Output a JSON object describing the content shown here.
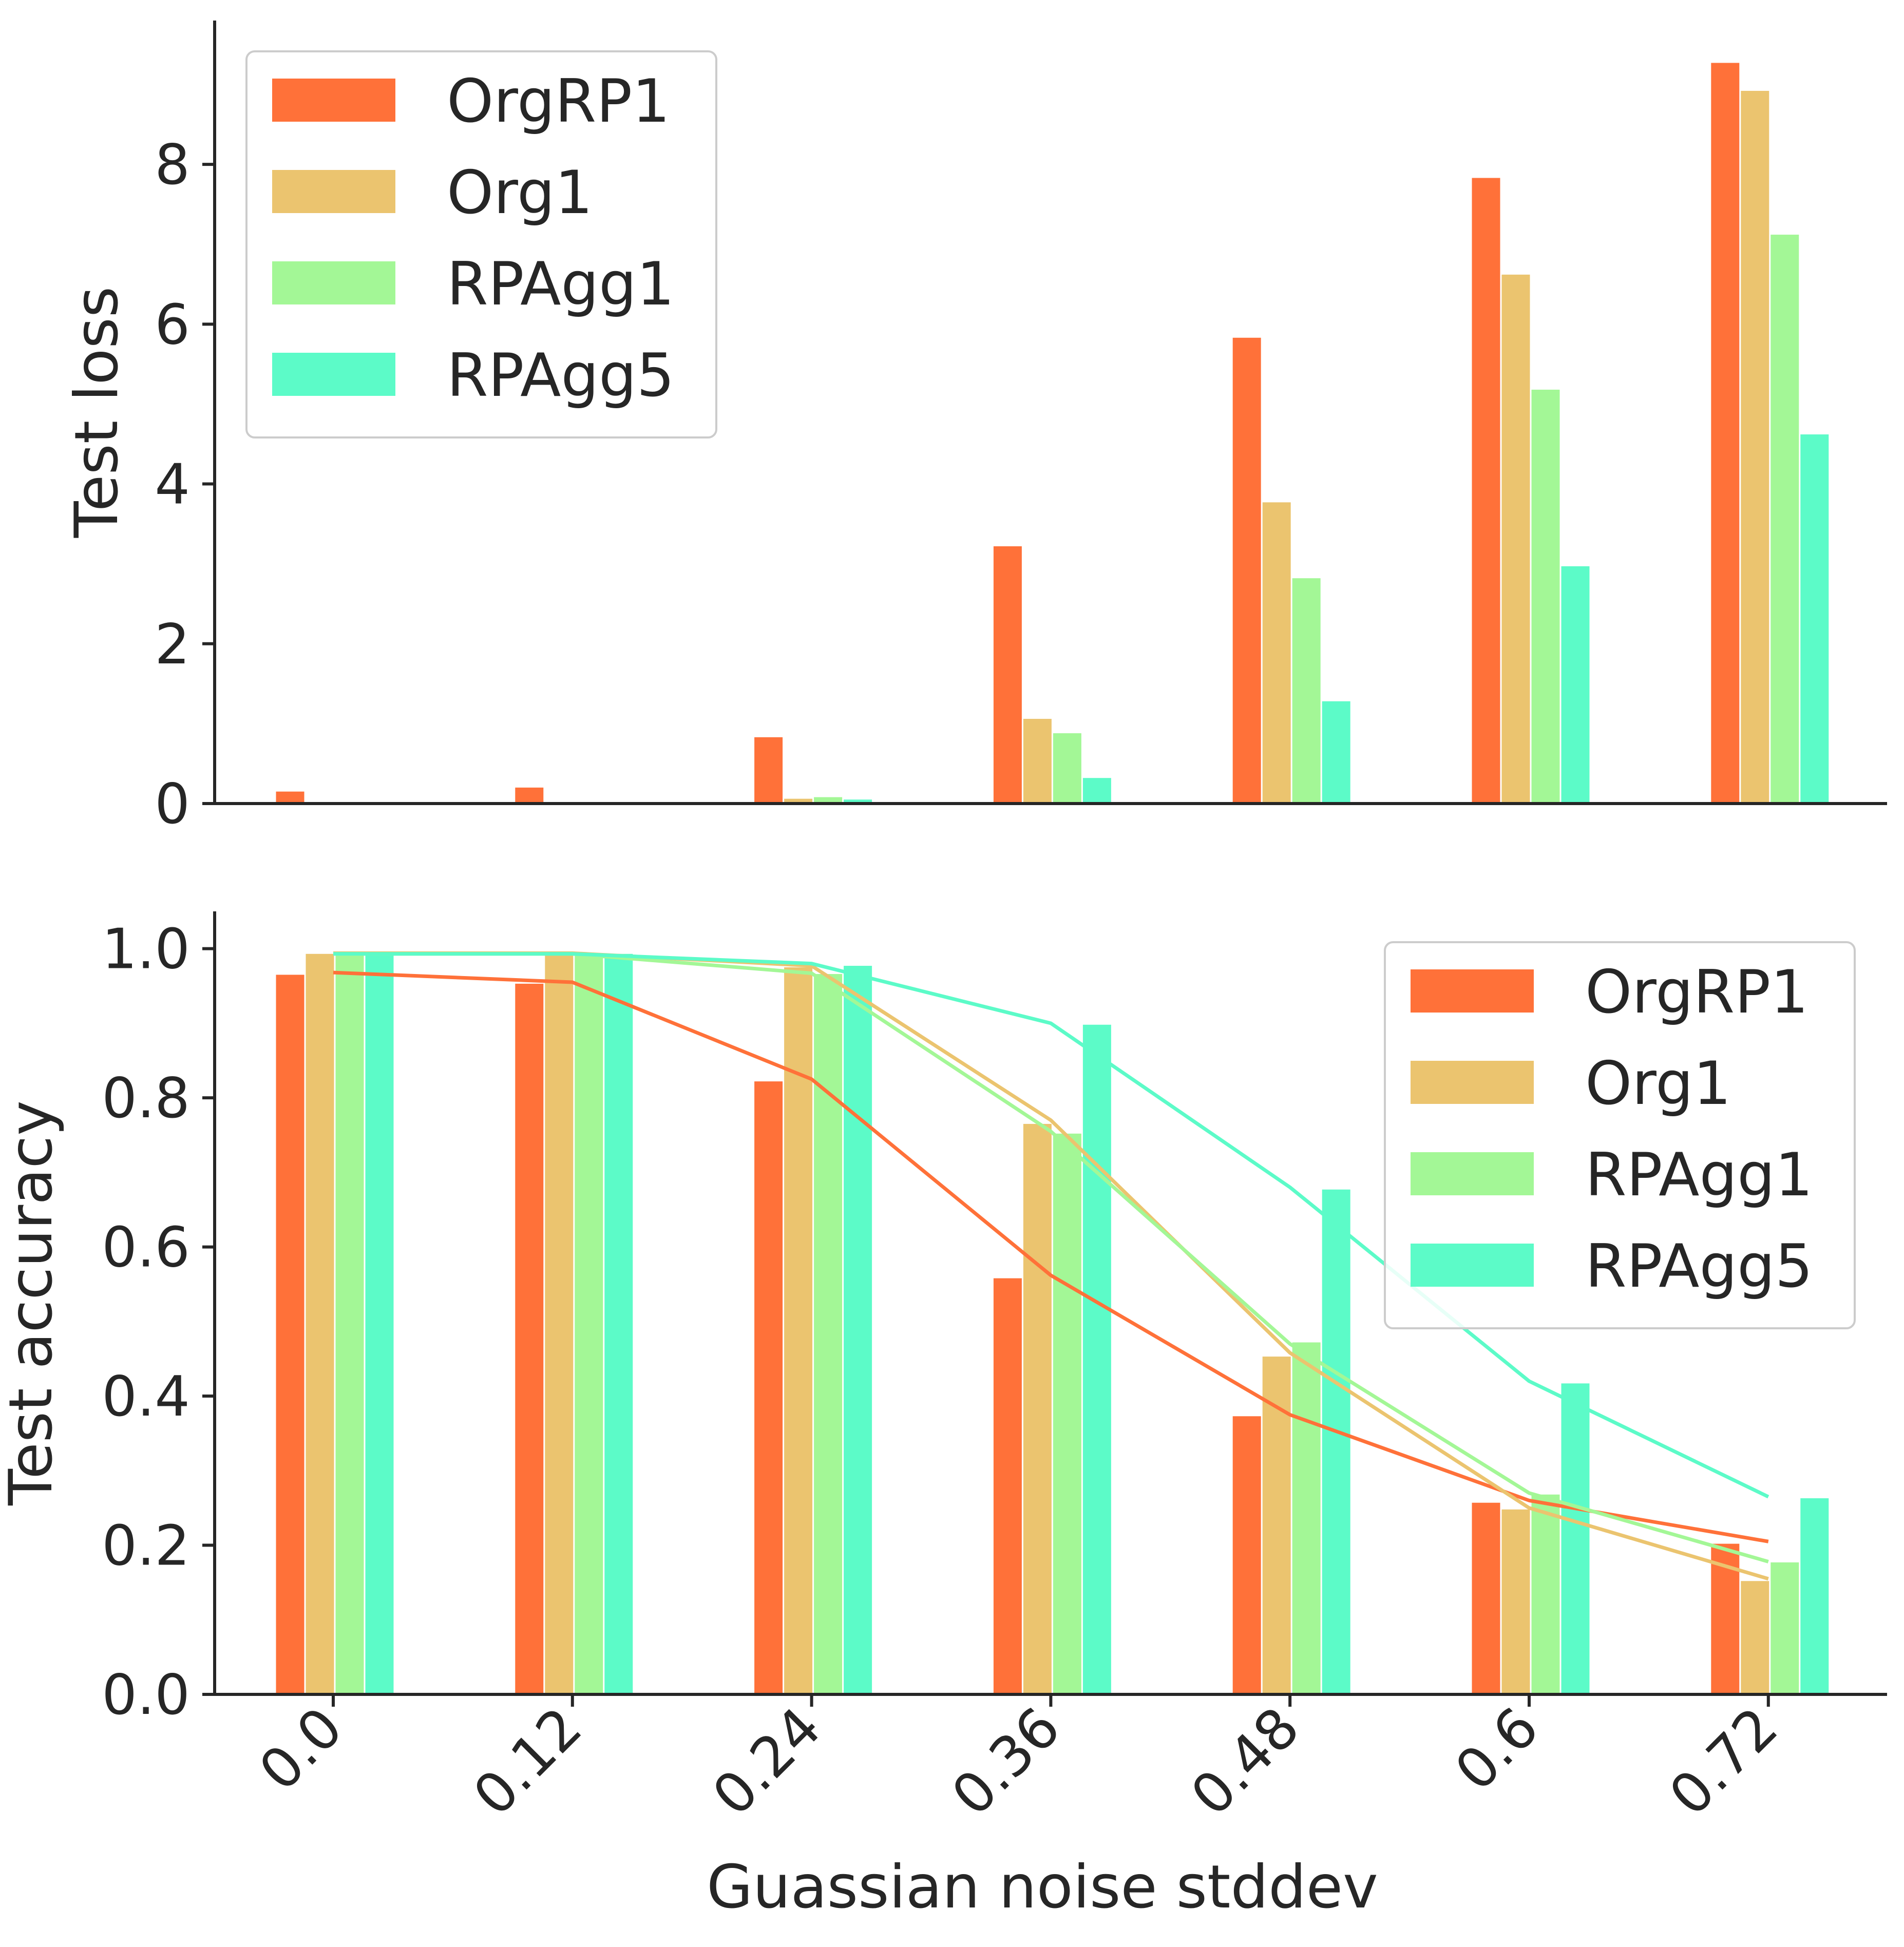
{
  "figure": {
    "xlabel": "Guassian noise stddev"
  },
  "chart_data": [
    {
      "type": "bar",
      "ylabel": "Test loss",
      "xlabel": "",
      "categories": [
        "0.0",
        "0.12",
        "0.24",
        "0.36",
        "0.48",
        "0.6",
        "0.72"
      ],
      "ylim": [
        0,
        9.8
      ],
      "yticks": [
        0,
        2,
        4,
        6,
        8
      ],
      "legend_position": "upper-left",
      "series": [
        {
          "name": "OrgRP1",
          "color": "#ff7139",
          "values": [
            0.15,
            0.2,
            0.83,
            3.22,
            5.83,
            7.83,
            9.27
          ]
        },
        {
          "name": "Org1",
          "color": "#ebc46f",
          "values": [
            0.0,
            0.0,
            0.06,
            1.06,
            3.77,
            6.62,
            8.92
          ]
        },
        {
          "name": "RPAgg1",
          "color": "#a3f796",
          "values": [
            0.0,
            0.0,
            0.08,
            0.88,
            2.82,
            5.18,
            7.12
          ]
        },
        {
          "name": "RPAgg5",
          "color": "#5cfbc8",
          "values": [
            0.0,
            0.0,
            0.05,
            0.32,
            1.28,
            2.97,
            4.62
          ]
        }
      ]
    },
    {
      "type": "bar",
      "ylabel": "Test accuracy",
      "xlabel": "Guassian noise stddev",
      "categories": [
        "0.0",
        "0.12",
        "0.24",
        "0.36",
        "0.48",
        "0.6",
        "0.72"
      ],
      "ylim": [
        0,
        1.05
      ],
      "yticks": [
        "0.0",
        "0.2",
        "0.4",
        "0.6",
        "0.8",
        "1.0"
      ],
      "legend_position": "upper-right",
      "series": [
        {
          "name": "OrgRP1",
          "color": "#ff7139",
          "values": [
            0.965,
            0.953,
            0.822,
            0.558,
            0.373,
            0.257,
            0.202
          ]
        },
        {
          "name": "Org1",
          "color": "#ebc46f",
          "values": [
            0.993,
            0.992,
            0.975,
            0.765,
            0.453,
            0.248,
            0.152
          ]
        },
        {
          "name": "RPAgg1",
          "color": "#a3f796",
          "values": [
            0.992,
            0.992,
            0.966,
            0.752,
            0.472,
            0.268,
            0.177
          ]
        },
        {
          "name": "RPAgg5",
          "color": "#5cfbc8",
          "values": [
            0.993,
            0.993,
            0.977,
            0.898,
            0.677,
            0.417,
            0.263
          ]
        }
      ],
      "lines": [
        {
          "name": "OrgRP1",
          "color": "#ff7139",
          "values": [
            0.968,
            0.955,
            0.825,
            0.562,
            0.375,
            0.26,
            0.205
          ]
        },
        {
          "name": "Org1",
          "color": "#ebc46f",
          "values": [
            0.994,
            0.994,
            0.977,
            0.77,
            0.458,
            0.25,
            0.155
          ]
        },
        {
          "name": "RPAgg1",
          "color": "#a3f796",
          "values": [
            0.993,
            0.993,
            0.967,
            0.755,
            0.47,
            0.27,
            0.178
          ]
        },
        {
          "name": "RPAgg5",
          "color": "#5cfbc8",
          "values": [
            0.993,
            0.993,
            0.98,
            0.9,
            0.68,
            0.42,
            0.265
          ]
        }
      ]
    }
  ]
}
